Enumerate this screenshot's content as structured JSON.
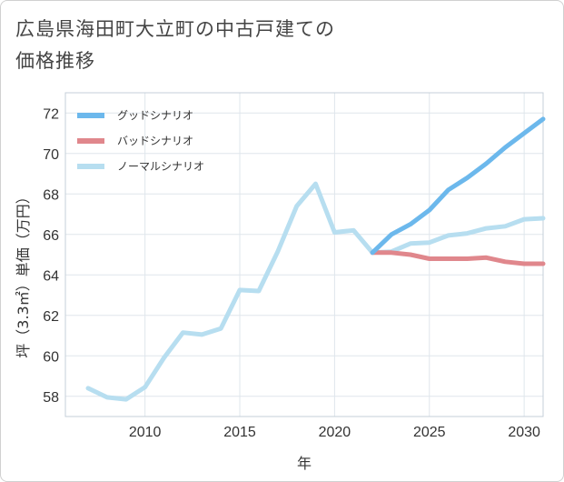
{
  "chart_data": {
    "type": "line",
    "title": "広島県海田町大立町の中古戸建ての価格推移",
    "xlabel": "年",
    "ylabel": "坪（3.3㎡）単価（万円）",
    "xlim": [
      2005.8,
      2031
    ],
    "ylim": [
      57,
      73
    ],
    "x_ticks": [
      2010,
      2015,
      2020,
      2025,
      2030
    ],
    "y_ticks": [
      58,
      60,
      62,
      64,
      66,
      68,
      70,
      72
    ],
    "grid": true,
    "legend_position": "top-left",
    "series": [
      {
        "name": "グッドシナリオ",
        "color": "#6cb8ec",
        "x": [
          2022,
          2023,
          2024,
          2025,
          2026,
          2027,
          2028,
          2029,
          2030,
          2031
        ],
        "y": [
          65.1,
          66.0,
          66.5,
          67.2,
          68.2,
          68.8,
          69.5,
          70.3,
          71.0,
          71.7
        ]
      },
      {
        "name": "バッドシナリオ",
        "color": "#e0878c",
        "x": [
          2022,
          2023,
          2024,
          2025,
          2026,
          2027,
          2028,
          2029,
          2030,
          2031
        ],
        "y": [
          65.1,
          65.1,
          65.0,
          64.8,
          64.8,
          64.8,
          64.85,
          64.65,
          64.55,
          64.55
        ]
      },
      {
        "name": "ノーマルシナリオ",
        "color": "#b7def0",
        "x": [
          2007,
          2008,
          2009,
          2010,
          2011,
          2012,
          2013,
          2014,
          2015,
          2016,
          2017,
          2018,
          2019,
          2020,
          2021,
          2022,
          2023,
          2024,
          2025,
          2026,
          2027,
          2028,
          2029,
          2030,
          2031
        ],
        "y": [
          58.4,
          57.95,
          57.85,
          58.45,
          59.9,
          61.15,
          61.05,
          61.35,
          63.25,
          63.2,
          65.15,
          67.4,
          68.5,
          66.1,
          66.2,
          65.1,
          65.15,
          65.55,
          65.6,
          65.95,
          66.05,
          66.3,
          66.4,
          66.75,
          66.8
        ]
      }
    ]
  }
}
